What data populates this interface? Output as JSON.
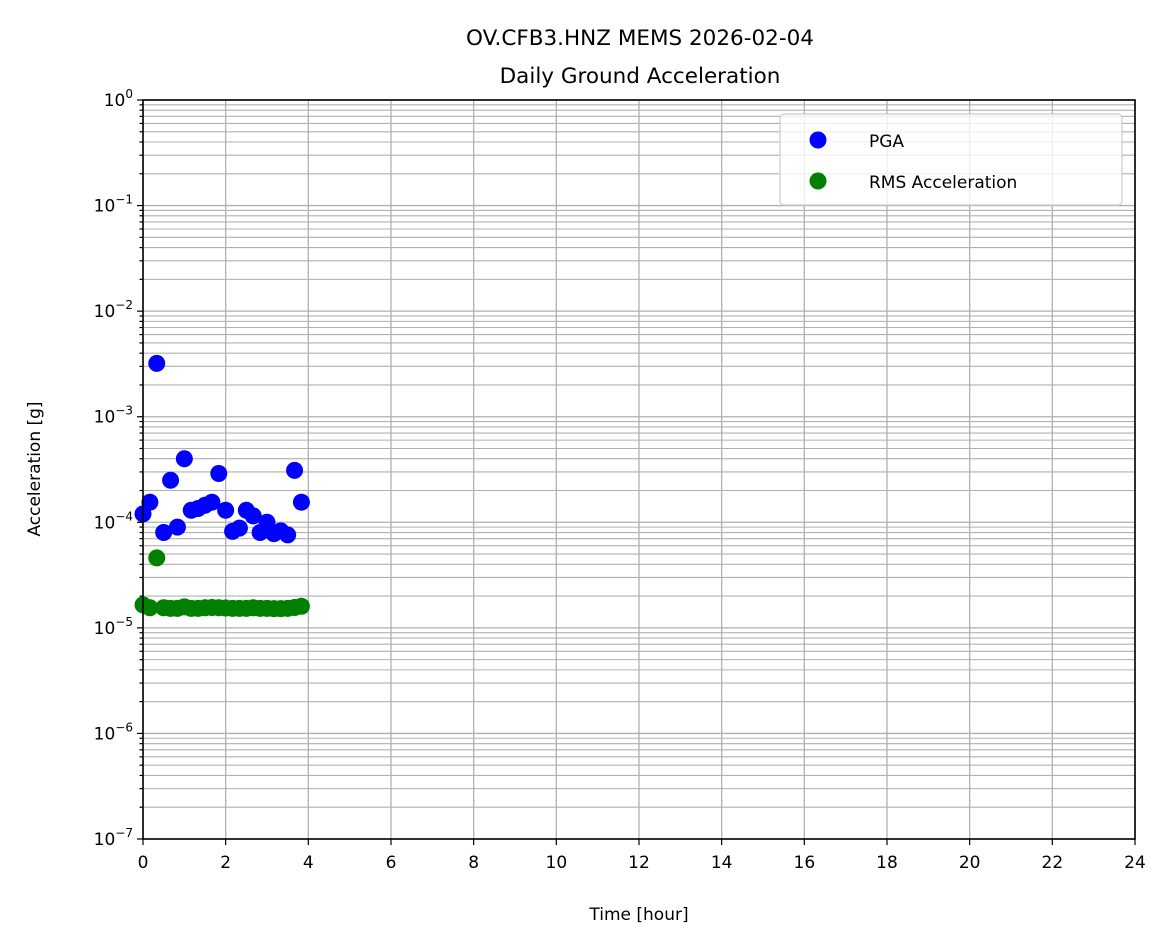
{
  "chart_data": {
    "type": "scatter",
    "title": "OV.CFB3.HNZ MEMS 2026-02-04",
    "subtitle": "Daily Ground Acceleration",
    "xlabel": "Time [hour]",
    "ylabel": "Acceleration [g]",
    "xlim": [
      0,
      24
    ],
    "ylim": [
      1e-07,
      1
    ],
    "yscale": "log",
    "grid": true,
    "legend_position": "top-right",
    "x_ticks": [
      "0",
      "2",
      "4",
      "6",
      "8",
      "10",
      "12",
      "14",
      "16",
      "18",
      "20",
      "22",
      "24"
    ],
    "y_ticks": [
      {
        "base": "10",
        "exp": "−7"
      },
      {
        "base": "10",
        "exp": "−6"
      },
      {
        "base": "10",
        "exp": "−5"
      },
      {
        "base": "10",
        "exp": "−4"
      },
      {
        "base": "10",
        "exp": "−3"
      },
      {
        "base": "10",
        "exp": "−2"
      },
      {
        "base": "10",
        "exp": "−1"
      },
      {
        "base": "10",
        "exp": "0"
      }
    ],
    "x": [
      0,
      0.167,
      0.333,
      0.5,
      0.667,
      0.833,
      1.0,
      1.167,
      1.333,
      1.5,
      1.667,
      1.833,
      2.0,
      2.167,
      2.333,
      2.5,
      2.667,
      2.833,
      3.0,
      3.167,
      3.333,
      3.5,
      3.667,
      3.833
    ],
    "series": [
      {
        "name": "PGA",
        "color": "#0000ff",
        "values": [
          0.00012,
          0.000155,
          0.0032,
          8e-05,
          0.00025,
          9e-05,
          0.0004,
          0.00013,
          0.000135,
          0.000145,
          0.000155,
          0.00029,
          0.00013,
          8.2e-05,
          8.8e-05,
          0.00013,
          0.000115,
          8e-05,
          0.0001,
          7.8e-05,
          8.3e-05,
          7.6e-05,
          0.00031,
          0.000155
        ]
      },
      {
        "name": "RMS Acceleration",
        "color": "#008000",
        "values": [
          1.65e-05,
          1.55e-05,
          4.6e-05,
          1.55e-05,
          1.53e-05,
          1.53e-05,
          1.58e-05,
          1.53e-05,
          1.53e-05,
          1.55e-05,
          1.56e-05,
          1.55e-05,
          1.54e-05,
          1.53e-05,
          1.53e-05,
          1.53e-05,
          1.55e-05,
          1.53e-05,
          1.53e-05,
          1.52e-05,
          1.52e-05,
          1.53e-05,
          1.56e-05,
          1.6e-05
        ]
      }
    ]
  }
}
